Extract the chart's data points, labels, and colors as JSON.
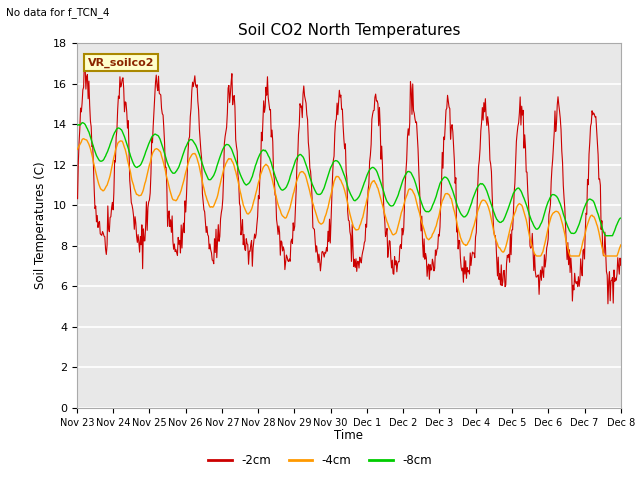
{
  "title": "Soil CO2 North Temperatures",
  "subtitle": "No data for f_TCN_4",
  "ylabel": "Soil Temperatures (C)",
  "xlabel": "Time",
  "legend_box_label": "VR_soilco2",
  "ylim": [
    0,
    18
  ],
  "yticks": [
    0,
    2,
    4,
    6,
    8,
    10,
    12,
    14,
    16,
    18
  ],
  "xtick_labels": [
    "Nov 23",
    "Nov 24",
    "Nov 25",
    "Nov 26",
    "Nov 27",
    "Nov 28",
    "Nov 29",
    "Nov 30",
    "Dec 1",
    "Dec 2",
    "Dec 3",
    "Dec 4",
    "Dec 5",
    "Dec 6",
    "Dec 7",
    "Dec 8"
  ],
  "colors": {
    "red": "#cc0000",
    "orange": "#ff9900",
    "green": "#00cc00",
    "plot_bg": "#e8e8e8",
    "grid": "#ffffff"
  },
  "legend_entries": [
    "-2cm",
    "-4cm",
    "-8cm"
  ],
  "num_points": 720
}
